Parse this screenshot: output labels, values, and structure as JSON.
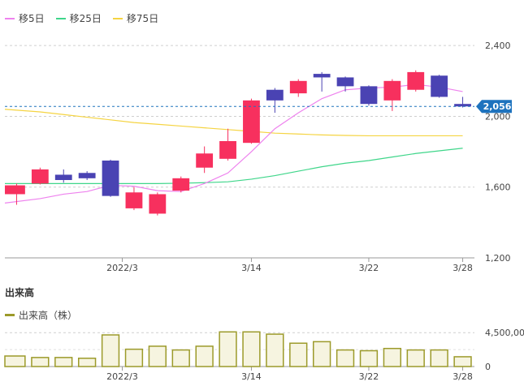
{
  "legend": {
    "ma5": "移5日",
    "ma25": "移25日",
    "ma75": "移75日"
  },
  "volume_section": {
    "title": "出来高",
    "legend": "出来高（株）"
  },
  "colors": {
    "up": "#f7305e",
    "down": "#4a43b3",
    "ma5": "#ee82ee",
    "ma25": "#3fd68a",
    "ma75": "#f5d442",
    "volume_fill": "#f6f4e0",
    "volume_stroke": "#9c9a2a",
    "current_price": "#1e73be"
  },
  "chart_data": [
    {
      "type": "candlestick",
      "x_tick_labels": [
        "2022/3",
        "3/14",
        "3/22",
        "3/28"
      ],
      "x_tick_index": [
        4.5,
        10,
        15,
        19
      ],
      "y_ticks": [
        1200,
        1600,
        2000,
        2400
      ],
      "y_tick_labels": [
        "1,200",
        "1,600",
        "2,000",
        "2,400"
      ],
      "ylim": [
        1200,
        2520
      ],
      "current_price": 2056,
      "current_price_label": "2,056",
      "candles": [
        {
          "open": 1560,
          "close": 1610,
          "high": 1620,
          "low": 1500
        },
        {
          "open": 1620,
          "close": 1700,
          "high": 1710,
          "low": 1615
        },
        {
          "open": 1670,
          "close": 1640,
          "high": 1700,
          "low": 1625
        },
        {
          "open": 1680,
          "close": 1650,
          "high": 1690,
          "low": 1640
        },
        {
          "open": 1750,
          "close": 1550,
          "high": 1755,
          "low": 1545
        },
        {
          "open": 1480,
          "close": 1570,
          "high": 1600,
          "low": 1470
        },
        {
          "open": 1450,
          "close": 1560,
          "high": 1570,
          "low": 1440
        },
        {
          "open": 1580,
          "close": 1650,
          "high": 1660,
          "low": 1570
        },
        {
          "open": 1710,
          "close": 1790,
          "high": 1830,
          "low": 1680
        },
        {
          "open": 1760,
          "close": 1860,
          "high": 1930,
          "low": 1750
        },
        {
          "open": 1850,
          "close": 2090,
          "high": 2100,
          "low": 1845
        },
        {
          "open": 2150,
          "close": 2090,
          "high": 2160,
          "low": 2020
        },
        {
          "open": 2130,
          "close": 2200,
          "high": 2210,
          "low": 2110
        },
        {
          "open": 2240,
          "close": 2220,
          "high": 2250,
          "low": 2140
        },
        {
          "open": 2220,
          "close": 2170,
          "high": 2225,
          "low": 2140
        },
        {
          "open": 2170,
          "close": 2070,
          "high": 2175,
          "low": 2060
        },
        {
          "open": 2090,
          "close": 2200,
          "high": 2210,
          "low": 2030
        },
        {
          "open": 2150,
          "close": 2250,
          "high": 2260,
          "low": 2140
        },
        {
          "open": 2230,
          "close": 2110,
          "high": 2235,
          "low": 2105
        },
        {
          "open": 2070,
          "close": 2056,
          "high": 2110,
          "low": 2050
        }
      ],
      "ma5": [
        1510,
        1535,
        1560,
        1575,
        1610,
        1605,
        1580,
        1575,
        1620,
        1680,
        1800,
        1930,
        2020,
        2100,
        2150,
        2160,
        2165,
        2180,
        2165,
        2140
      ],
      "ma25": [
        1620,
        1620,
        1620,
        1620,
        1620,
        1620,
        1620,
        1622,
        1625,
        1630,
        1645,
        1665,
        1690,
        1715,
        1735,
        1750,
        1770,
        1790,
        1805,
        1820
      ],
      "ma75": [
        2040,
        2025,
        2010,
        1995,
        1980,
        1965,
        1955,
        1945,
        1935,
        1925,
        1915,
        1905,
        1900,
        1895,
        1892,
        1890,
        1890,
        1890,
        1890,
        1890
      ]
    },
    {
      "type": "bar",
      "title": "出来高",
      "legend": "出来高（株）",
      "y_ticks": [
        0,
        4500
      ],
      "y_tick_labels": [
        "0",
        "4,500,00"
      ],
      "ylim": [
        0,
        5600
      ],
      "values": [
        1400,
        1200,
        1200,
        1100,
        4200,
        2300,
        2700,
        2200,
        2700,
        4600,
        4600,
        4300,
        3100,
        3300,
        2200,
        2100,
        2400,
        2200,
        2200,
        1300
      ]
    }
  ]
}
